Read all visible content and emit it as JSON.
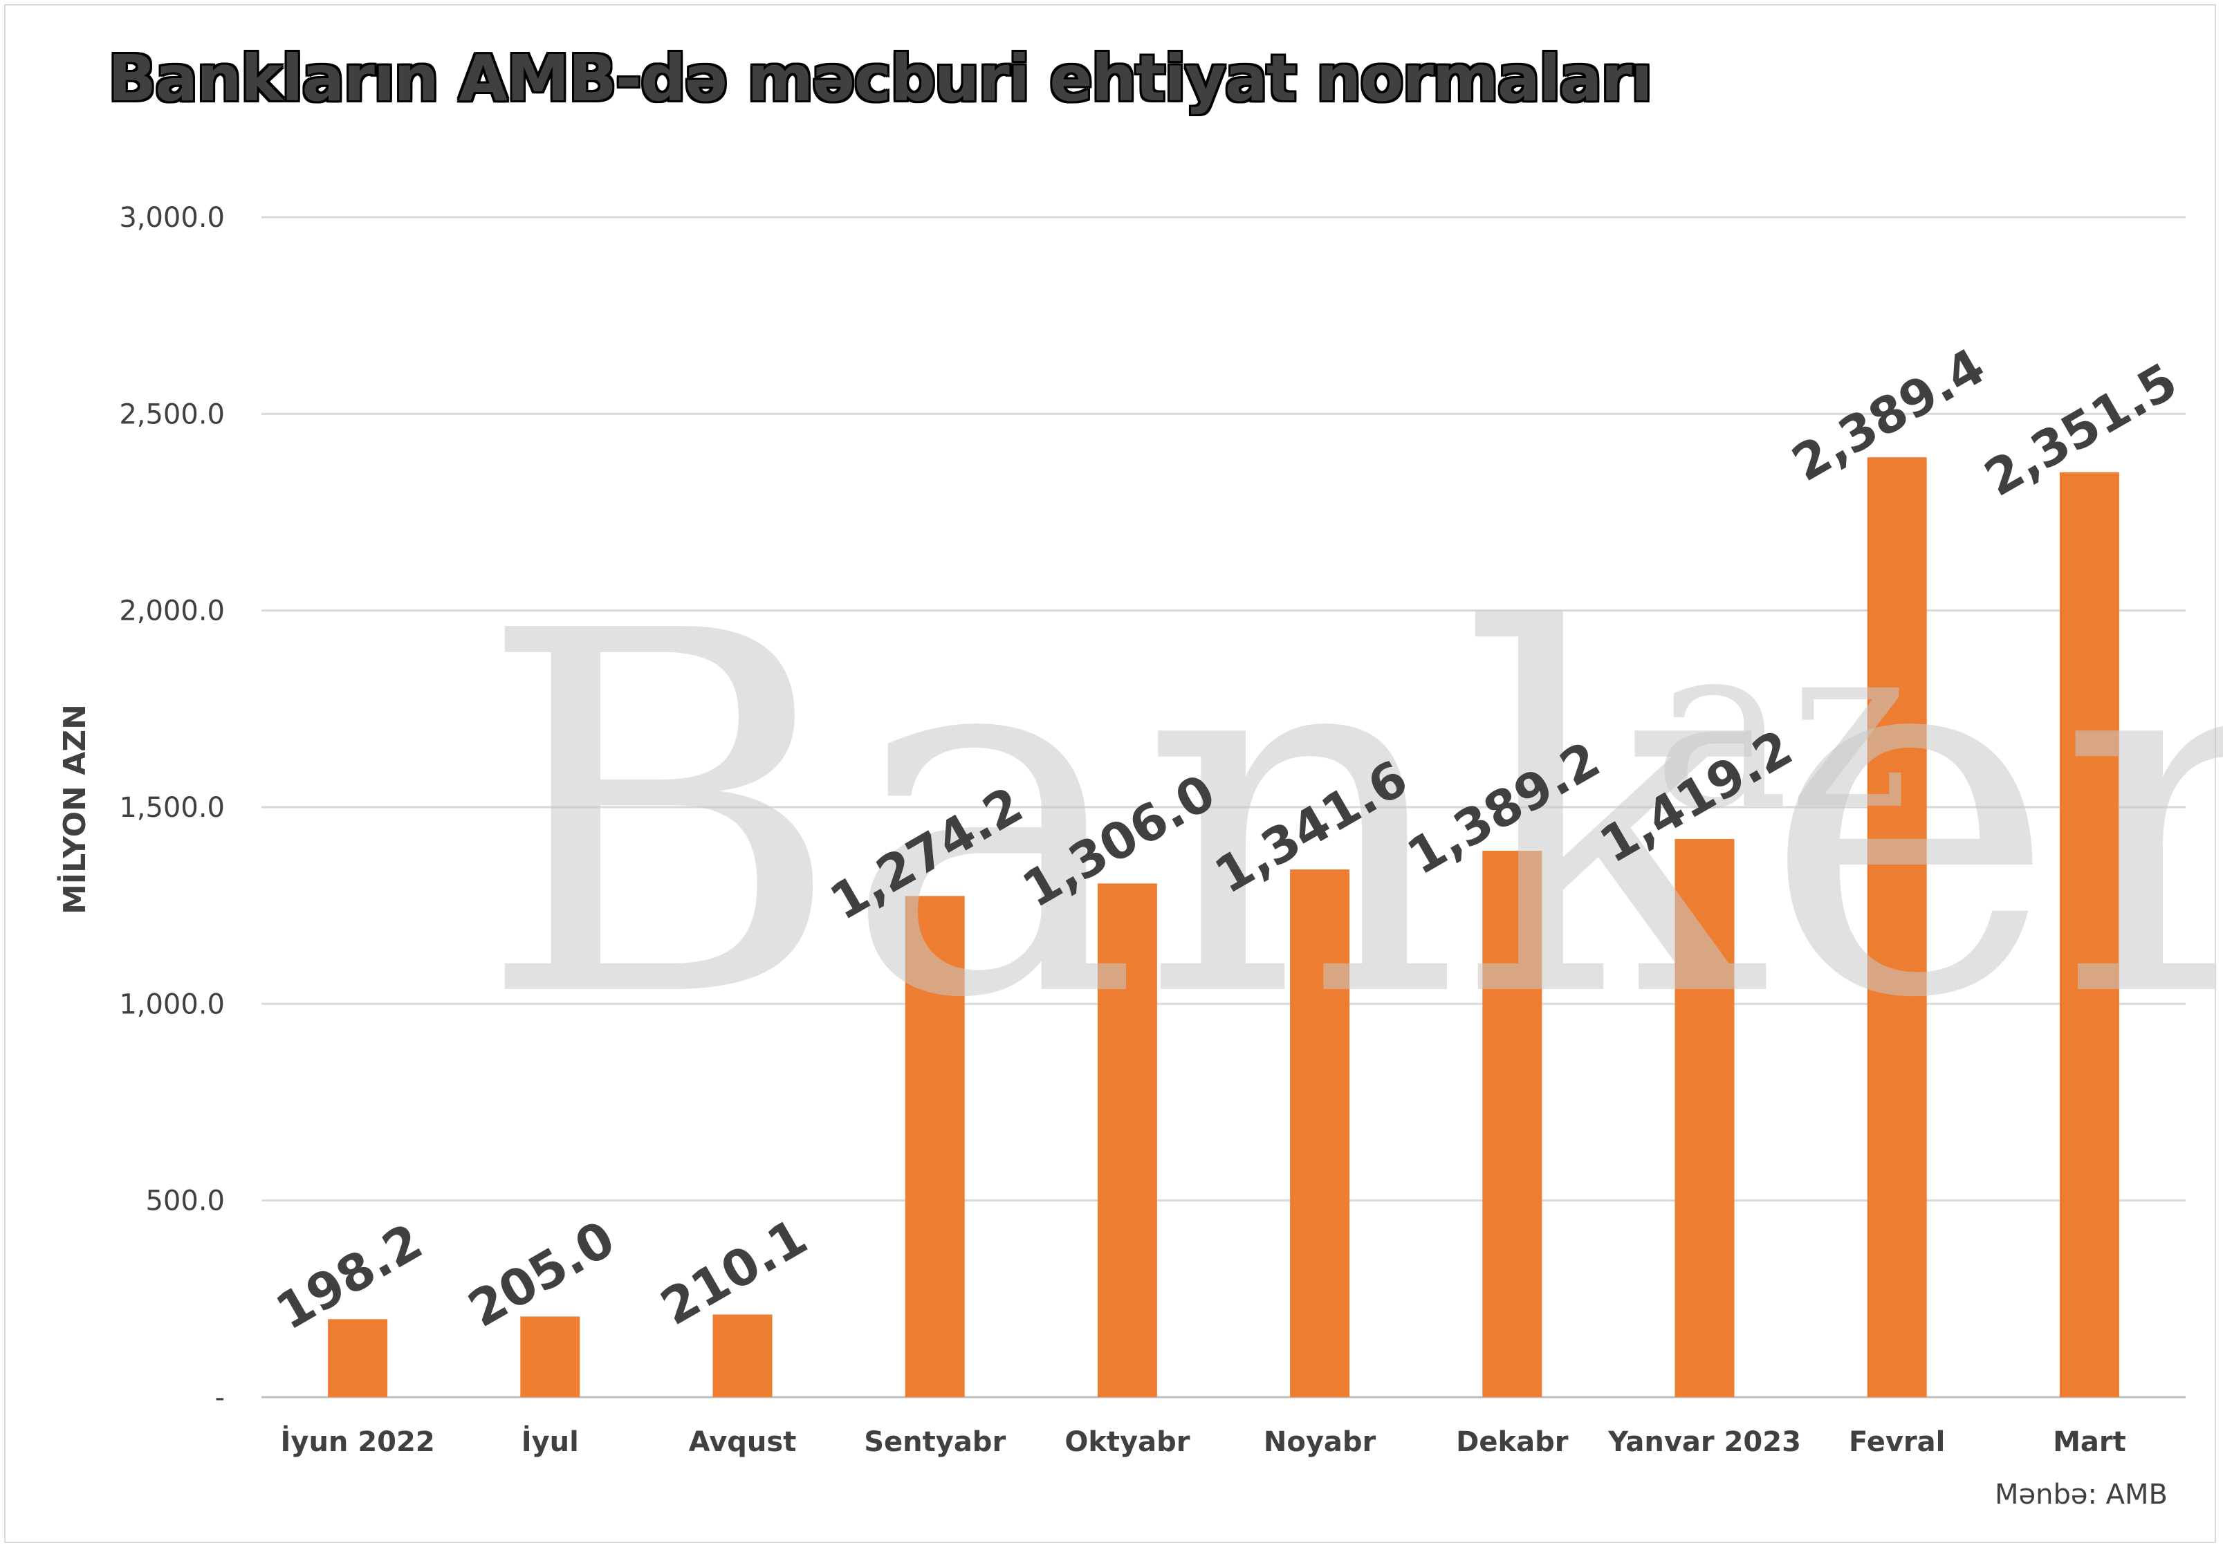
{
  "title": "Bankların AMB-də məcburi ehtiyat normaları",
  "source": "Mənbə: AMB",
  "watermark": {
    "main": "Banker",
    "suffix": "az"
  },
  "colors": {
    "bar": "#ed7d31",
    "text": "#404040",
    "grid": "#d9d9d9",
    "watermark": "#c8c8c8"
  },
  "chart_data": {
    "type": "bar",
    "categories": [
      "İyun 2022",
      "İyul",
      "Avqust",
      "Sentyabr",
      "Oktyabr",
      "Noyabr",
      "Dekabr",
      "Yanvar 2023",
      "Fevral",
      "Mart"
    ],
    "values": [
      198.2,
      205.0,
      210.1,
      1274.2,
      1306.0,
      1341.6,
      1389.2,
      1419.2,
      2389.4,
      2351.5
    ],
    "data_labels": [
      "198.2",
      "205.0",
      "210.1",
      "1,274.2",
      "1,306.0",
      "1,341.6",
      "1,389.2",
      "1,419.2",
      "2,389.4",
      "2,351.5"
    ],
    "ylabel": "MİLYON AZN",
    "xlabel": "",
    "ylim": [
      0,
      3000
    ],
    "yticks": [
      0,
      500,
      1000,
      1500,
      2000,
      2500,
      3000
    ],
    "ytick_labels": [
      "-",
      "500.0",
      "1,000.0",
      "1,500.0",
      "2,000.0",
      "2,500.0",
      "3,000.0"
    ],
    "grid": true,
    "legend": "none"
  }
}
